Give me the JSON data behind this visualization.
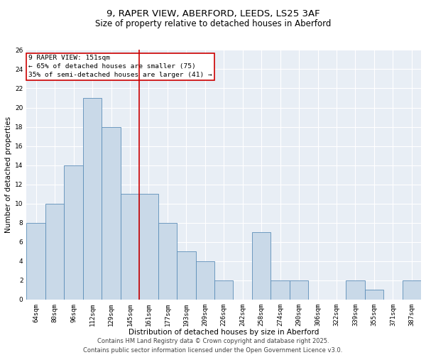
{
  "title_line1": "9, RAPER VIEW, ABERFORD, LEEDS, LS25 3AF",
  "title_line2": "Size of property relative to detached houses in Aberford",
  "xlabel": "Distribution of detached houses by size in Aberford",
  "ylabel": "Number of detached properties",
  "categories": [
    "64sqm",
    "80sqm",
    "96sqm",
    "112sqm",
    "129sqm",
    "145sqm",
    "161sqm",
    "177sqm",
    "193sqm",
    "209sqm",
    "226sqm",
    "242sqm",
    "258sqm",
    "274sqm",
    "290sqm",
    "306sqm",
    "322sqm",
    "339sqm",
    "355sqm",
    "371sqm",
    "387sqm"
  ],
  "values": [
    8,
    10,
    14,
    21,
    18,
    11,
    11,
    8,
    5,
    4,
    2,
    0,
    7,
    2,
    2,
    0,
    0,
    2,
    1,
    0,
    2
  ],
  "bar_color": "#c9d9e8",
  "bar_edge_color": "#5b8db8",
  "vline_x": 5.5,
  "vline_color": "#cc0000",
  "ylim": [
    0,
    26
  ],
  "yticks": [
    0,
    2,
    4,
    6,
    8,
    10,
    12,
    14,
    16,
    18,
    20,
    22,
    24,
    26
  ],
  "annotation_title": "9 RAPER VIEW: 151sqm",
  "annotation_line1": "← 65% of detached houses are smaller (75)",
  "annotation_line2": "35% of semi-detached houses are larger (41) →",
  "annotation_box_color": "#cc0000",
  "background_color": "#e8eef5",
  "footer_line1": "Contains HM Land Registry data © Crown copyright and database right 2025.",
  "footer_line2": "Contains public sector information licensed under the Open Government Licence v3.0.",
  "title_fontsize": 9.5,
  "subtitle_fontsize": 8.5,
  "axis_label_fontsize": 7.5,
  "tick_fontsize": 6.5,
  "annotation_fontsize": 6.8,
  "footer_fontsize": 6.0
}
